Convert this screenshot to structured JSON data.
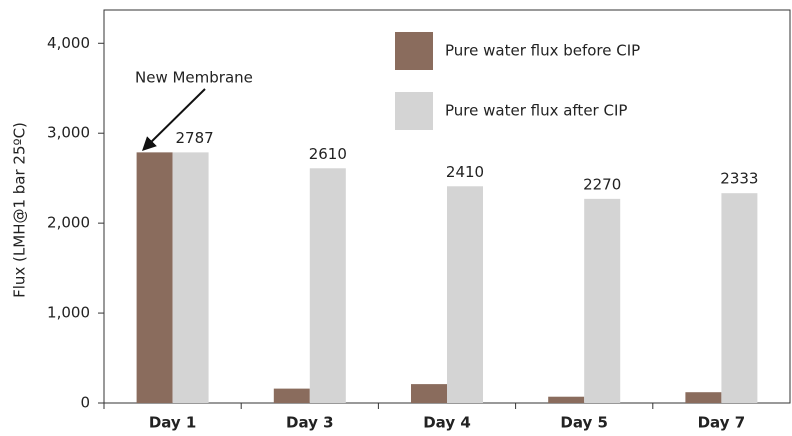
{
  "chart_data": {
    "type": "bar",
    "y_label": "Flux (LMH@1 bar 25ºC)",
    "annotation": "New Membrane",
    "categories": [
      "Day 1",
      "Day 3",
      "Day 4",
      "Day 5",
      "Day 7"
    ],
    "series": [
      {
        "name": "Pure water flux before CIP",
        "color": "#8a6c5d",
        "values": [
          2787,
          160,
          210,
          70,
          120
        ]
      },
      {
        "name": "Pure water flux after CIP",
        "color": "#d4d4d4",
        "values": [
          2787,
          2610,
          2410,
          2270,
          2333
        ]
      }
    ],
    "ylim": [
      0,
      4370
    ],
    "yticks": [
      0,
      {
        "value": 1000,
        "label": "1,000"
      },
      {
        "value": 2000,
        "label": "2,000"
      },
      {
        "value": 3000,
        "label": "3,000"
      },
      {
        "value": 4000,
        "label": "4,000"
      }
    ],
    "grid": false
  }
}
